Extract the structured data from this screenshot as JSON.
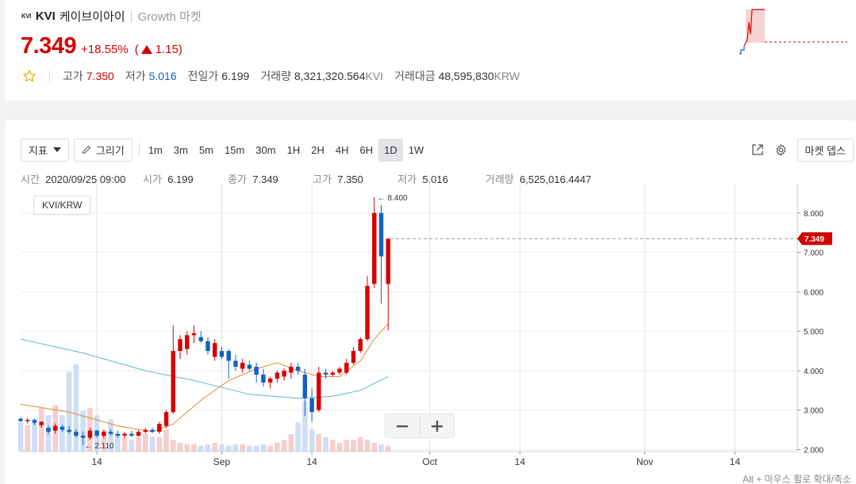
{
  "coin": {
    "logo": "KVI",
    "symbol": "KVI",
    "name_kr": "케이브이아이",
    "separator": "|",
    "market": "Growth 마켓"
  },
  "price": {
    "current": "7.349",
    "change_pct": "+18.55%",
    "change_open": "(",
    "change_abs": "1.15)"
  },
  "stats": {
    "separator": "|",
    "high_label": "고가",
    "high": "7.350",
    "low_label": "저가",
    "low": "5.016",
    "prev_label": "전일가",
    "prev": "6.199",
    "volume_label": "거래량",
    "volume": "8,321,320.564",
    "volume_unit": "KVI",
    "amount_label": "거래대금",
    "amount": "48,595,830",
    "amount_unit": "KRW"
  },
  "toolbar": {
    "indicator_label": "지표",
    "draw_label": "그리기",
    "intervals": [
      "1m",
      "3m",
      "5m",
      "15m",
      "30m",
      "1H",
      "2H",
      "4H",
      "6H",
      "1D",
      "1W"
    ],
    "active_interval": "1D",
    "depth_label": "마켓 뎁스"
  },
  "ohlc": {
    "time_label": "시간",
    "time": "2020/09/25 09:00",
    "open_label": "시가",
    "open": "6.199",
    "close_label": "종가",
    "close": "7.349",
    "high_label": "고가",
    "high": "7.350",
    "low_label": "저가",
    "low": "5.016",
    "vol_label": "거래량",
    "vol": "6,525,016.4447"
  },
  "pair_label": "KVI/KRW",
  "hint": "Alt + 마우스 휠로 확대/축소",
  "colors": {
    "up": "#d60000",
    "down": "#1261c4",
    "ma_short": "#e08a2c",
    "ma_long": "#63b7c9"
  },
  "icons": {
    "star": "star-icon",
    "pencil": "pencil-icon",
    "popout": "popout-icon",
    "gear": "gear-icon",
    "minus": "minus-icon",
    "plus": "plus-icon"
  },
  "chart_data": {
    "type": "candlestick",
    "pair": "KVI/KRW",
    "interval": "1D",
    "y_ticks": [
      "8.000",
      "7.000",
      "6.000",
      "5.000",
      "4.000",
      "3.000",
      "2.000"
    ],
    "ylim": [
      1.95,
      8.7
    ],
    "x_ticks": [
      {
        "date": "2020-08-14",
        "label": "14"
      },
      {
        "date": "2020-09-01",
        "label": "Sep"
      },
      {
        "date": "2020-09-14",
        "label": "14"
      },
      {
        "date": "2020-10-01",
        "label": "Oct"
      },
      {
        "date": "2020-10-14",
        "label": "14"
      },
      {
        "date": "2020-11-01",
        "label": "Nov"
      },
      {
        "date": "2020-11-14",
        "label": "14"
      }
    ],
    "x_range": [
      "2020-08-03",
      "2020-11-23"
    ],
    "last_price": "7.349",
    "max_label": "← 8.400",
    "min_label": "← 2.110",
    "candles": [
      {
        "date": "2020-08-03",
        "o": 2.78,
        "h": 2.82,
        "l": 2.7,
        "c": 2.72
      },
      {
        "date": "2020-08-04",
        "o": 2.72,
        "h": 2.8,
        "l": 2.66,
        "c": 2.75
      },
      {
        "date": "2020-08-05",
        "o": 2.75,
        "h": 2.78,
        "l": 2.62,
        "c": 2.68
      },
      {
        "date": "2020-08-06",
        "o": 2.62,
        "h": 2.72,
        "l": 2.55,
        "c": 2.7
      },
      {
        "date": "2020-08-07",
        "o": 2.55,
        "h": 2.6,
        "l": 2.38,
        "c": 2.45
      },
      {
        "date": "2020-08-08",
        "o": 2.48,
        "h": 2.66,
        "l": 2.4,
        "c": 2.6
      },
      {
        "date": "2020-08-09",
        "o": 2.58,
        "h": 2.63,
        "l": 2.45,
        "c": 2.5
      },
      {
        "date": "2020-08-10",
        "o": 2.5,
        "h": 2.6,
        "l": 2.4,
        "c": 2.45
      },
      {
        "date": "2020-08-11",
        "o": 2.45,
        "h": 2.52,
        "l": 2.3,
        "c": 2.35
      },
      {
        "date": "2020-08-12",
        "o": 2.35,
        "h": 2.45,
        "l": 2.11,
        "c": 2.3
      },
      {
        "date": "2020-08-13",
        "o": 2.3,
        "h": 2.55,
        "l": 2.25,
        "c": 2.48
      },
      {
        "date": "2020-08-14",
        "o": 2.48,
        "h": 2.5,
        "l": 2.3,
        "c": 2.35
      },
      {
        "date": "2020-08-15",
        "o": 2.35,
        "h": 2.5,
        "l": 2.28,
        "c": 2.45
      },
      {
        "date": "2020-08-16",
        "o": 2.45,
        "h": 2.52,
        "l": 2.35,
        "c": 2.4
      },
      {
        "date": "2020-08-17",
        "o": 2.4,
        "h": 2.48,
        "l": 2.3,
        "c": 2.35
      },
      {
        "date": "2020-08-18",
        "o": 2.35,
        "h": 2.45,
        "l": 2.3,
        "c": 2.4
      },
      {
        "date": "2020-08-19",
        "o": 2.4,
        "h": 2.48,
        "l": 2.32,
        "c": 2.35
      },
      {
        "date": "2020-08-20",
        "o": 2.35,
        "h": 2.5,
        "l": 2.32,
        "c": 2.45
      },
      {
        "date": "2020-08-21",
        "o": 2.45,
        "h": 2.55,
        "l": 2.4,
        "c": 2.5
      },
      {
        "date": "2020-08-22",
        "o": 2.5,
        "h": 2.55,
        "l": 2.42,
        "c": 2.45
      },
      {
        "date": "2020-08-23",
        "o": 2.45,
        "h": 2.7,
        "l": 2.4,
        "c": 2.65
      },
      {
        "date": "2020-08-24",
        "o": 2.6,
        "h": 3.0,
        "l": 2.55,
        "c": 2.95
      },
      {
        "date": "2020-08-25",
        "o": 2.95,
        "h": 5.15,
        "l": 2.9,
        "c": 4.5
      },
      {
        "date": "2020-08-26",
        "o": 4.5,
        "h": 4.9,
        "l": 4.3,
        "c": 4.8
      },
      {
        "date": "2020-08-27",
        "o": 4.55,
        "h": 5.0,
        "l": 4.4,
        "c": 4.9
      },
      {
        "date": "2020-08-28",
        "o": 4.9,
        "h": 5.15,
        "l": 4.7,
        "c": 4.95
      },
      {
        "date": "2020-08-29",
        "o": 4.85,
        "h": 5.0,
        "l": 4.7,
        "c": 4.75
      },
      {
        "date": "2020-08-30",
        "o": 4.75,
        "h": 4.85,
        "l": 4.4,
        "c": 4.5
      },
      {
        "date": "2020-08-31",
        "o": 4.35,
        "h": 4.8,
        "l": 4.25,
        "c": 4.7
      },
      {
        "date": "2020-09-01",
        "o": 4.5,
        "h": 4.6,
        "l": 4.3,
        "c": 4.35
      },
      {
        "date": "2020-09-02",
        "o": 4.5,
        "h": 4.55,
        "l": 3.8,
        "c": 4.25
      },
      {
        "date": "2020-09-03",
        "o": 4.25,
        "h": 4.4,
        "l": 4.0,
        "c": 4.1
      },
      {
        "date": "2020-09-04",
        "o": 4.05,
        "h": 4.3,
        "l": 3.95,
        "c": 4.2
      },
      {
        "date": "2020-09-05",
        "o": 4.15,
        "h": 4.25,
        "l": 4.0,
        "c": 4.05
      },
      {
        "date": "2020-09-06",
        "o": 4.1,
        "h": 4.2,
        "l": 3.7,
        "c": 3.9
      },
      {
        "date": "2020-09-07",
        "o": 3.9,
        "h": 4.05,
        "l": 3.6,
        "c": 3.7
      },
      {
        "date": "2020-09-08",
        "o": 3.7,
        "h": 3.85,
        "l": 3.55,
        "c": 3.8
      },
      {
        "date": "2020-09-09",
        "o": 3.8,
        "h": 4.0,
        "l": 3.7,
        "c": 3.95
      },
      {
        "date": "2020-09-10",
        "o": 3.85,
        "h": 4.05,
        "l": 3.75,
        "c": 4.0
      },
      {
        "date": "2020-09-11",
        "o": 3.95,
        "h": 4.2,
        "l": 3.8,
        "c": 4.1
      },
      {
        "date": "2020-09-12",
        "o": 4.1,
        "h": 4.2,
        "l": 3.9,
        "c": 4.0
      },
      {
        "date": "2020-09-13",
        "o": 3.9,
        "h": 4.05,
        "l": 2.85,
        "c": 3.3
      },
      {
        "date": "2020-09-14",
        "o": 3.3,
        "h": 3.55,
        "l": 2.7,
        "c": 2.95
      },
      {
        "date": "2020-09-15",
        "o": 3.0,
        "h": 4.1,
        "l": 2.95,
        "c": 3.95
      },
      {
        "date": "2020-09-16",
        "o": 3.95,
        "h": 4.05,
        "l": 3.8,
        "c": 3.9
      },
      {
        "date": "2020-09-17",
        "o": 3.9,
        "h": 4.0,
        "l": 3.85,
        "c": 3.95
      },
      {
        "date": "2020-09-18",
        "o": 3.95,
        "h": 4.1,
        "l": 3.9,
        "c": 4.05
      },
      {
        "date": "2020-09-19",
        "o": 3.95,
        "h": 4.3,
        "l": 3.9,
        "c": 4.2
      },
      {
        "date": "2020-09-20",
        "o": 4.2,
        "h": 4.6,
        "l": 4.15,
        "c": 4.5
      },
      {
        "date": "2020-09-21",
        "o": 4.5,
        "h": 4.85,
        "l": 4.45,
        "c": 4.8
      },
      {
        "date": "2020-09-22",
        "o": 4.8,
        "h": 6.4,
        "l": 4.75,
        "c": 6.15
      },
      {
        "date": "2020-09-23",
        "o": 6.2,
        "h": 8.4,
        "l": 6.1,
        "c": 8.0
      },
      {
        "date": "2020-09-24",
        "o": 8.0,
        "h": 8.2,
        "l": 5.7,
        "c": 6.9
      },
      {
        "date": "2020-09-25",
        "o": 6.199,
        "h": 7.35,
        "l": 5.016,
        "c": 7.349
      }
    ],
    "ma_short_values": [
      {
        "date": "2020-08-03",
        "v": 3.15
      },
      {
        "date": "2020-08-10",
        "v": 2.95
      },
      {
        "date": "2020-08-17",
        "v": 2.6
      },
      {
        "date": "2020-08-22",
        "v": 2.45
      },
      {
        "date": "2020-08-25",
        "v": 2.65
      },
      {
        "date": "2020-08-29",
        "v": 3.25
      },
      {
        "date": "2020-09-02",
        "v": 3.75
      },
      {
        "date": "2020-09-06",
        "v": 4.05
      },
      {
        "date": "2020-09-09",
        "v": 4.2
      },
      {
        "date": "2020-09-12",
        "v": 4.0
      },
      {
        "date": "2020-09-15",
        "v": 3.85
      },
      {
        "date": "2020-09-18",
        "v": 3.85
      },
      {
        "date": "2020-09-21",
        "v": 4.25
      },
      {
        "date": "2020-09-23",
        "v": 4.8
      },
      {
        "date": "2020-09-25",
        "v": 5.2
      }
    ],
    "ma_long_values": [
      {
        "date": "2020-08-03",
        "v": 4.8
      },
      {
        "date": "2020-08-12",
        "v": 4.45
      },
      {
        "date": "2020-08-21",
        "v": 4.0
      },
      {
        "date": "2020-08-28",
        "v": 3.75
      },
      {
        "date": "2020-09-05",
        "v": 3.4
      },
      {
        "date": "2020-09-12",
        "v": 3.3
      },
      {
        "date": "2020-09-17",
        "v": 3.35
      },
      {
        "date": "2020-09-21",
        "v": 3.5
      },
      {
        "date": "2020-09-25",
        "v": 3.85
      }
    ],
    "volume_bars": [
      0.2,
      0.18,
      0.22,
      0.3,
      0.25,
      0.32,
      0.25,
      0.55,
      0.6,
      0.28,
      0.3,
      0.25,
      0.15,
      0.22,
      0.12,
      0.1,
      0.08,
      0.1,
      0.12,
      0.1,
      0.1,
      0.15,
      0.08,
      0.06,
      0.05,
      0.05,
      0.04,
      0.05,
      0.06,
      0.05,
      0.04,
      0.05,
      0.05,
      0.04,
      0.04,
      0.05,
      0.04,
      0.06,
      0.08,
      0.12,
      0.2,
      0.35,
      0.15,
      0.12,
      0.1,
      0.08,
      0.06,
      0.08,
      0.08,
      0.1,
      0.08,
      0.06,
      0.05,
      0.04
    ]
  }
}
